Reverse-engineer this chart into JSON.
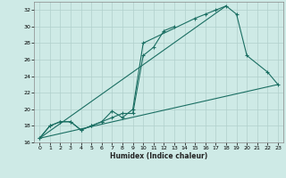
{
  "xlabel": "Humidex (Indice chaleur)",
  "bg_color": "#ceeae6",
  "grid_color": "#b0d0cc",
  "line_color": "#1a6e62",
  "xlim": [
    -0.5,
    23.5
  ],
  "ylim": [
    16,
    33
  ],
  "xticks": [
    0,
    1,
    2,
    3,
    4,
    5,
    6,
    7,
    8,
    9,
    10,
    11,
    12,
    13,
    14,
    15,
    16,
    17,
    18,
    19,
    20,
    21,
    22,
    23
  ],
  "yticks": [
    16,
    18,
    20,
    22,
    24,
    26,
    28,
    30,
    32
  ],
  "series1_x": [
    0,
    1,
    2,
    3,
    4,
    5,
    6,
    7,
    8,
    9,
    10,
    11,
    12,
    13
  ],
  "series1_y": [
    16.5,
    18.0,
    18.5,
    18.5,
    17.5,
    18.0,
    18.5,
    19.0,
    19.5,
    19.5,
    26.5,
    27.5,
    29.5,
    30.0
  ],
  "series2_x": [
    0,
    1,
    2,
    3,
    4,
    5,
    6,
    7,
    8,
    9,
    10,
    15,
    16,
    17,
    18,
    19,
    20,
    22,
    23
  ],
  "series2_y": [
    16.5,
    18.0,
    18.5,
    18.5,
    17.5,
    18.0,
    18.5,
    19.8,
    19.0,
    20.0,
    28.0,
    31.0,
    31.5,
    32.0,
    32.5,
    31.5,
    26.5,
    24.5,
    23.0
  ],
  "series3_x": [
    0,
    23
  ],
  "series3_y": [
    16.5,
    23.0
  ],
  "series4_x": [
    0,
    18
  ],
  "series4_y": [
    16.5,
    32.5
  ]
}
